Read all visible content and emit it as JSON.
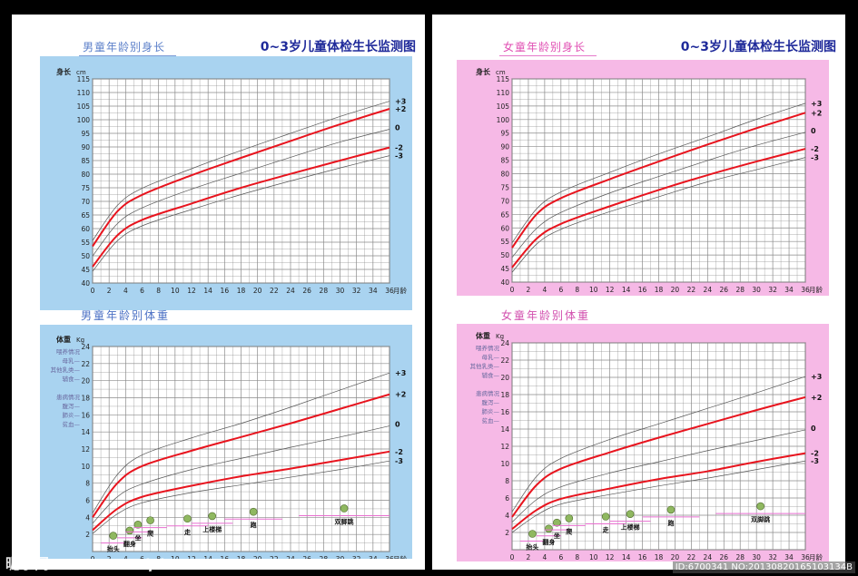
{
  "title": "0~3岁儿童体检生长监测图",
  "colors": {
    "boy_bg": "#a9d3f0",
    "girl_bg": "#f6b9e6",
    "grid": "#8a8a8a",
    "plot_bg": "#ffffff",
    "red_curve": "#e8141e",
    "grey_curve": "#555555",
    "pink_arrow": "#e86ed0"
  },
  "panels": {
    "boy": {
      "height_title": "男童年龄别身长",
      "weight_title": "男童年龄别体重"
    },
    "girl": {
      "height_title": "女童年龄别身长",
      "weight_title": "女童年龄别体重"
    }
  },
  "height_axis": {
    "ylabel": "身长",
    "unit": "cm",
    "xlabel": "月龄",
    "x_ticks": [
      0,
      2,
      4,
      6,
      8,
      10,
      12,
      14,
      16,
      18,
      20,
      22,
      24,
      26,
      28,
      30,
      32,
      34,
      36
    ],
    "y_ticks": [
      40,
      45,
      50,
      55,
      60,
      65,
      70,
      75,
      80,
      85,
      90,
      95,
      100,
      105,
      110,
      115
    ],
    "sd_labels": [
      "+3",
      "+2",
      "0",
      "-2",
      "-3"
    ]
  },
  "weight_axis": {
    "ylabel": "体重",
    "unit": "Kg",
    "xlabel": "月龄",
    "x_ticks": [
      0,
      2,
      4,
      6,
      8,
      10,
      12,
      14,
      16,
      18,
      20,
      22,
      24,
      26,
      28,
      30,
      32,
      34,
      36
    ],
    "y_ticks": [
      2,
      4,
      6,
      8,
      10,
      12,
      14,
      16,
      18,
      20,
      22,
      24
    ],
    "sd_labels": [
      "+3",
      "+2",
      "0",
      "-2",
      "-3"
    ],
    "feeding_notes": [
      "喂养情况",
      "母乳—",
      "其他乳类—",
      "辅食—"
    ],
    "illness_notes": [
      "患病情况",
      "腹泻—",
      "肺炎—",
      "贫血—"
    ]
  },
  "milestones_boy": [
    "抬头",
    "翻身",
    "坐",
    "爬",
    "走",
    "上楼梯",
    "跑",
    "双脚跳"
  ],
  "milestones_girl": [
    "抬头",
    "翻身",
    "坐",
    "爬",
    "走",
    "上楼梯",
    "跑",
    "双脚跳"
  ],
  "chart_data": [
    {
      "type": "line",
      "title": "男童年龄别身长",
      "xlabel": "月龄",
      "ylabel": "身长 cm",
      "xlim": [
        0,
        36
      ],
      "ylim": [
        40,
        115
      ],
      "grid": true,
      "x": [
        0,
        3,
        6,
        12,
        18,
        24,
        30,
        36
      ],
      "series": [
        {
          "name": "+3",
          "values": [
            55.6,
            68.5,
            74.8,
            82.0,
            88.7,
            95.0,
            101.2,
            106.8
          ]
        },
        {
          "name": "+2",
          "values": [
            53.5,
            66.3,
            72.4,
            79.6,
            86.0,
            92.2,
            98.3,
            104.0
          ]
        },
        {
          "name": "0",
          "values": [
            49.9,
            61.8,
            67.6,
            74.5,
            80.4,
            86.2,
            91.8,
            96.5
          ]
        },
        {
          "name": "-2",
          "values": [
            46.0,
            57.5,
            63.2,
            69.2,
            75.0,
            80.1,
            85.0,
            89.8
          ]
        },
        {
          "name": "-3",
          "values": [
            44.3,
            55.5,
            61.0,
            67.0,
            72.5,
            77.5,
            82.3,
            86.8
          ]
        }
      ]
    },
    {
      "type": "line",
      "title": "男童年龄别体重",
      "xlabel": "月龄",
      "ylabel": "体重 Kg",
      "xlim": [
        0,
        36
      ],
      "ylim": [
        0,
        24
      ],
      "grid": true,
      "x": [
        0,
        3,
        6,
        12,
        18,
        24,
        30,
        36
      ],
      "series": [
        {
          "name": "+3",
          "values": [
            4.5,
            9.0,
            11.3,
            13.3,
            15.0,
            16.9,
            18.9,
            20.9
          ]
        },
        {
          "name": "+2",
          "values": [
            4.0,
            8.0,
            10.0,
            11.8,
            13.4,
            15.0,
            16.7,
            18.4
          ]
        },
        {
          "name": "0",
          "values": [
            3.3,
            6.4,
            7.9,
            9.6,
            10.9,
            12.2,
            13.4,
            14.7
          ]
        },
        {
          "name": "-2",
          "values": [
            2.5,
            5.0,
            6.4,
            7.7,
            8.8,
            9.7,
            10.7,
            11.7
          ]
        },
        {
          "name": "-3",
          "values": [
            2.1,
            4.4,
            5.7,
            6.9,
            7.8,
            8.7,
            9.6,
            10.6
          ]
        }
      ]
    },
    {
      "type": "line",
      "title": "女童年龄别身长",
      "xlabel": "月龄",
      "ylabel": "身长 cm",
      "xlim": [
        0,
        36
      ],
      "ylim": [
        40,
        115
      ],
      "grid": true,
      "x": [
        0,
        3,
        6,
        12,
        18,
        24,
        30,
        36
      ],
      "series": [
        {
          "name": "+3",
          "values": [
            54.5,
            67.0,
            73.3,
            80.5,
            87.3,
            93.6,
            100.1,
            106.0
          ]
        },
        {
          "name": "+2",
          "values": [
            52.7,
            65.0,
            71.0,
            78.0,
            84.5,
            90.8,
            96.8,
            102.5
          ]
        },
        {
          "name": "0",
          "values": [
            49.1,
            59.8,
            65.7,
            72.9,
            79.0,
            84.9,
            90.5,
            95.3
          ]
        },
        {
          "name": "-2",
          "values": [
            45.4,
            56.0,
            61.5,
            68.0,
            74.0,
            79.5,
            84.5,
            89.2
          ]
        },
        {
          "name": "-3",
          "values": [
            43.6,
            54.0,
            59.5,
            66.0,
            71.5,
            77.0,
            81.5,
            86.0
          ]
        }
      ]
    },
    {
      "type": "line",
      "title": "女童年龄别体重",
      "xlabel": "月龄",
      "ylabel": "体重 Kg",
      "xlim": [
        0,
        36
      ],
      "ylim": [
        0,
        24
      ],
      "grid": true,
      "x": [
        0,
        3,
        6,
        12,
        18,
        24,
        30,
        36
      ],
      "series": [
        {
          "name": "+3",
          "values": [
            4.4,
            8.5,
            10.6,
            12.8,
            14.6,
            16.4,
            18.2,
            20.1
          ]
        },
        {
          "name": "+2",
          "values": [
            3.8,
            7.5,
            9.4,
            11.3,
            13.0,
            14.6,
            16.2,
            17.7
          ]
        },
        {
          "name": "0",
          "values": [
            3.2,
            5.8,
            7.3,
            8.9,
            10.2,
            11.5,
            12.7,
            13.9
          ]
        },
        {
          "name": "-2",
          "values": [
            2.4,
            4.6,
            5.9,
            7.1,
            8.2,
            9.1,
            10.2,
            11.2
          ]
        },
        {
          "name": "-3",
          "values": [
            2.0,
            4.0,
            5.3,
            6.4,
            7.4,
            8.3,
            9.3,
            10.3
          ]
        }
      ]
    }
  ],
  "watermark": {
    "logo": "昵享网",
    "url": "www.nipic.com",
    "id_text": "ID:6700341 NO:20130820165103134B"
  }
}
